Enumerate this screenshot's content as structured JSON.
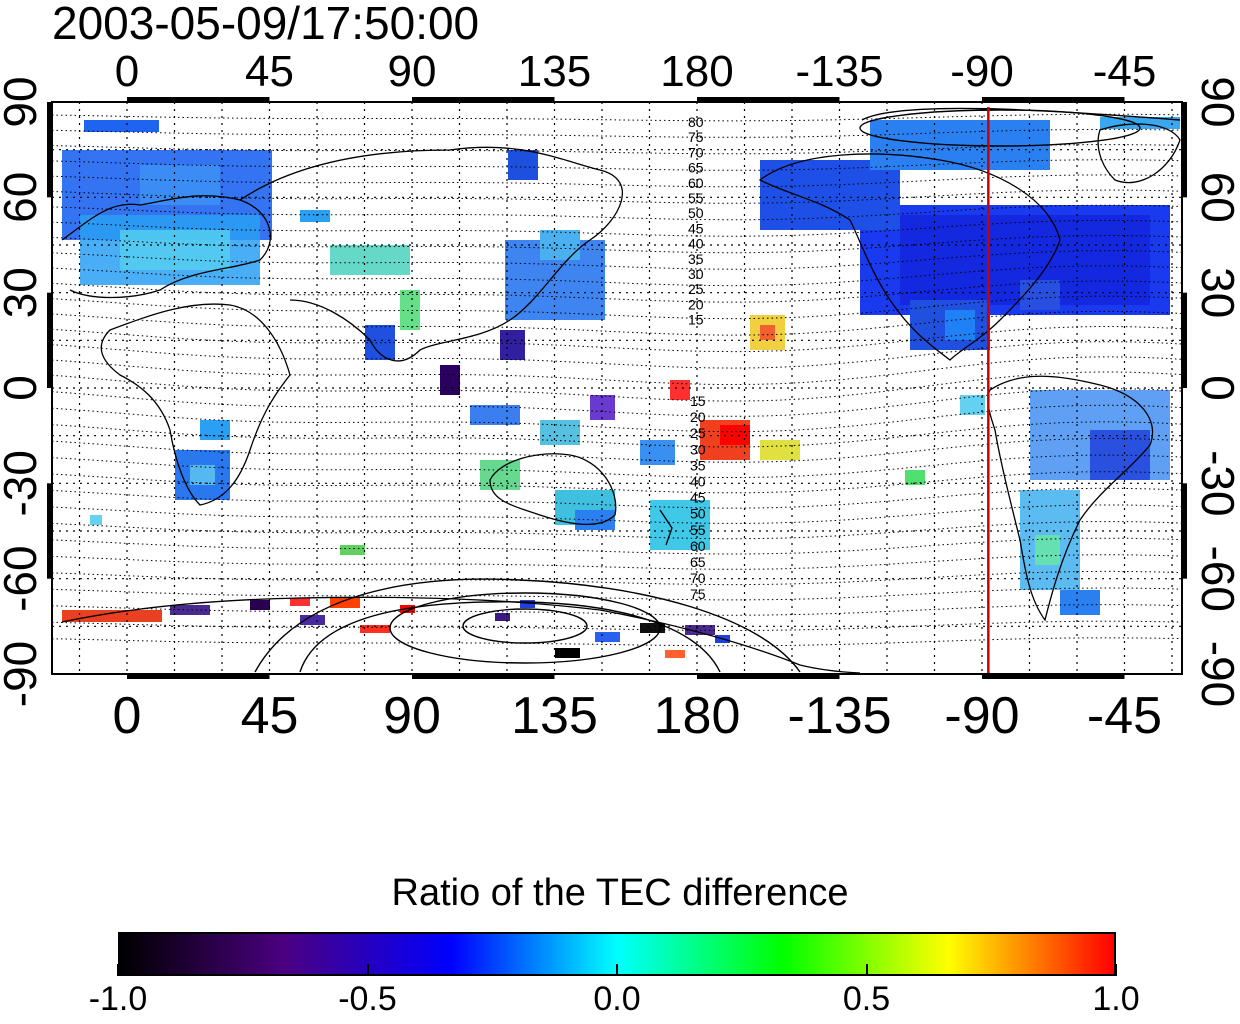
{
  "timestamp": "2003-05-09/17:50:00",
  "map": {
    "top_lon_ticks": [
      "0",
      "45",
      "90",
      "135",
      "180",
      "-135",
      "-90",
      "-45"
    ],
    "bottom_lon_ticks": [
      "0",
      "45",
      "90",
      "135",
      "180",
      "-135",
      "-90",
      "-45"
    ],
    "left_lat_ticks": [
      "90",
      "60",
      "30",
      "0",
      "-30",
      "-60",
      "-90"
    ],
    "right_lat_ticks": [
      "90",
      "60",
      "30",
      "0",
      "-30",
      "-60",
      "-90"
    ],
    "north_contour_labels": [
      "80",
      "75",
      "70",
      "65",
      "60",
      "55",
      "50",
      "45",
      "40",
      "35",
      "30",
      "25",
      "20",
      "15"
    ],
    "south_contour_labels": [
      "15",
      "20",
      "25",
      "30",
      "35",
      "40",
      "45",
      "50",
      "55",
      "60",
      "65",
      "70",
      "75"
    ],
    "marker_line_color": "#cc0000",
    "marker_longitude": -88
  },
  "colorbar": {
    "title": "Ratio of the TEC difference",
    "labels": [
      "-1.0",
      "-0.5",
      "0.0",
      "0.5",
      "1.0"
    ],
    "stops": [
      "#000000",
      "#4b0082",
      "#0000ff",
      "#00ffff",
      "#00ff00",
      "#ffff00",
      "#ff0000"
    ]
  }
}
